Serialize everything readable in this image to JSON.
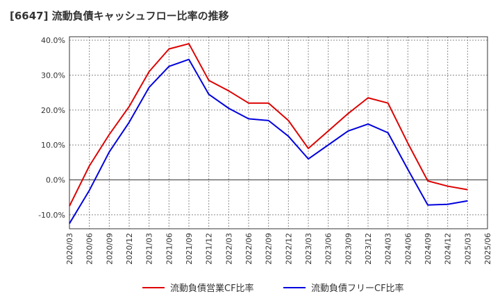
{
  "chart_data": {
    "type": "line",
    "title": "[6647]  流動負債キャッシュフロー比率の推移",
    "categories": [
      "2020/03",
      "2020/06",
      "2020/09",
      "2020/12",
      "2021/03",
      "2021/06",
      "2021/09",
      "2021/12",
      "2022/03",
      "2022/06",
      "2022/09",
      "2022/12",
      "2023/03",
      "2023/06",
      "2023/09",
      "2023/12",
      "2024/03",
      "2024/06",
      "2024/09",
      "2024/12",
      "2025/03",
      "2025/06"
    ],
    "series": [
      {
        "name": "流動負債営業CF比率",
        "color": "#dd0000",
        "values": [
          -7.5,
          4.0,
          13.0,
          21.0,
          31.0,
          37.5,
          39.0,
          28.5,
          25.5,
          22.0,
          22.0,
          17.0,
          9.0,
          14.0,
          19.0,
          23.5,
          22.0,
          10.5,
          -0.3,
          -1.8,
          -2.8,
          null
        ]
      },
      {
        "name": "流動負債フリーCF比率",
        "color": "#0000dd",
        "values": [
          -12.5,
          -3.0,
          8.0,
          16.5,
          26.5,
          32.5,
          34.5,
          24.5,
          20.5,
          17.5,
          17.0,
          12.5,
          6.0,
          10.0,
          14.0,
          16.0,
          13.5,
          3.0,
          -7.2,
          -7.0,
          -6.0,
          null
        ]
      }
    ],
    "yticks": [
      40,
      30,
      20,
      10,
      0,
      -10
    ],
    "ytick_labels": [
      "40.0%",
      "30.0%",
      "20.0%",
      "10.0%",
      "0.0%",
      "-10.0%"
    ],
    "ylim": [
      -14,
      41
    ],
    "xlabel": "",
    "ylabel": "",
    "grid": true,
    "legend_position": "bottom"
  }
}
